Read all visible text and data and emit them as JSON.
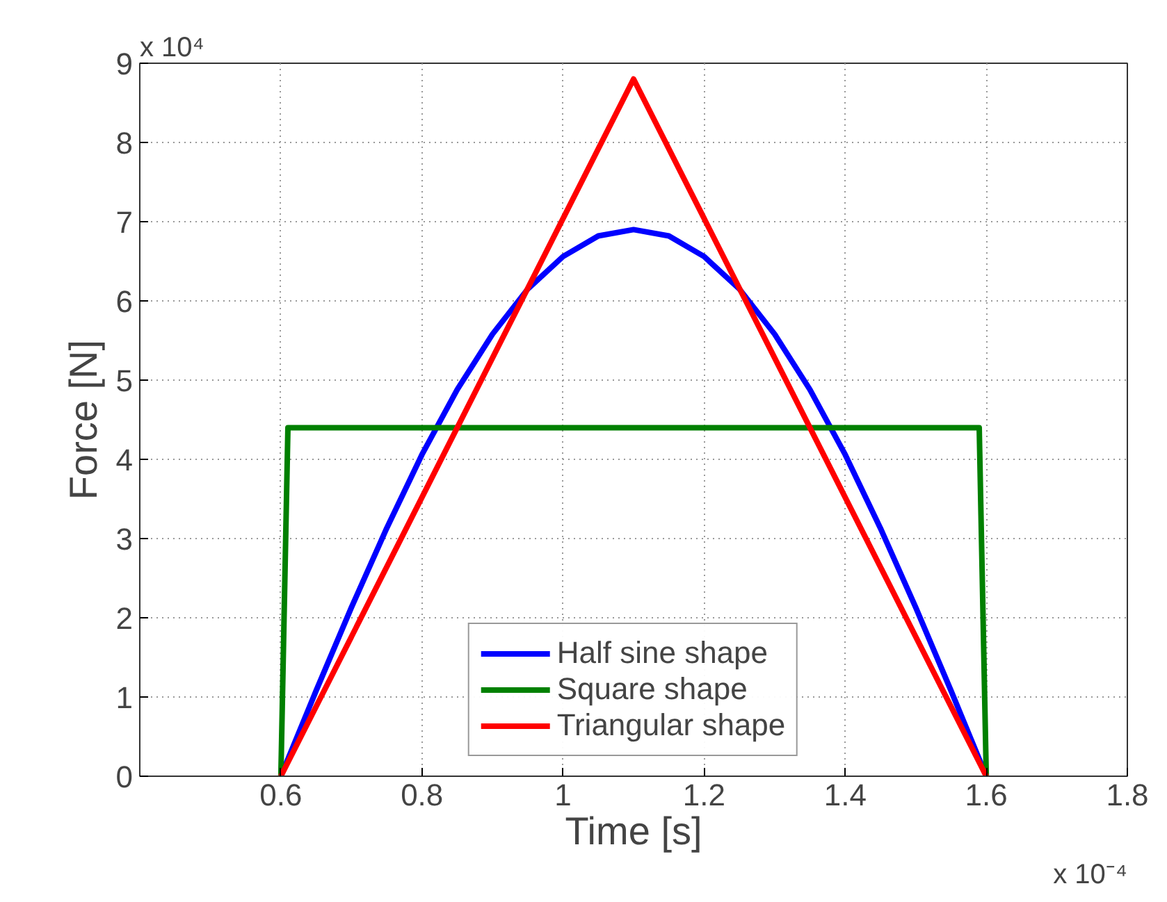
{
  "chart_data": {
    "type": "line",
    "xlabel": "Time [s]",
    "ylabel": "Force [N]",
    "x": [
      0.6,
      0.65,
      0.7,
      0.75,
      0.8,
      0.85,
      0.9,
      0.95,
      1.0,
      1.05,
      1.1,
      1.15,
      1.2,
      1.25,
      1.3,
      1.35,
      1.4,
      1.45,
      1.5,
      1.55,
      1.6
    ],
    "series": [
      {
        "name": "Half sine shape",
        "color": "#0000ff",
        "values": [
          0,
          1.08,
          2.13,
          3.13,
          4.06,
          4.88,
          5.58,
          6.15,
          6.56,
          6.82,
          6.9,
          6.82,
          6.56,
          6.15,
          5.58,
          4.88,
          4.06,
          3.13,
          2.13,
          1.08,
          0
        ]
      },
      {
        "name": "Square shape",
        "color": "#008000",
        "x": [
          0.6,
          0.61,
          1.59,
          1.6
        ],
        "values": [
          0,
          4.4,
          4.4,
          0
        ]
      },
      {
        "name": "Triangular shape",
        "color": "#ff0000",
        "x": [
          0.6,
          1.1,
          1.6
        ],
        "values": [
          0,
          8.8,
          0
        ]
      }
    ],
    "xlim": [
      0.4,
      1.8
    ],
    "xticks": [
      0.6,
      0.8,
      1,
      1.2,
      1.4,
      1.6,
      1.8
    ],
    "ylim": [
      0,
      9
    ],
    "yticks": [
      0,
      1,
      2,
      3,
      4,
      5,
      6,
      7,
      8,
      9
    ],
    "annotations": [
      "x 10⁴",
      "x 10⁻⁴"
    ],
    "grid": true,
    "legend": "bottom",
    "line_style": "solid",
    "marker": "none"
  }
}
